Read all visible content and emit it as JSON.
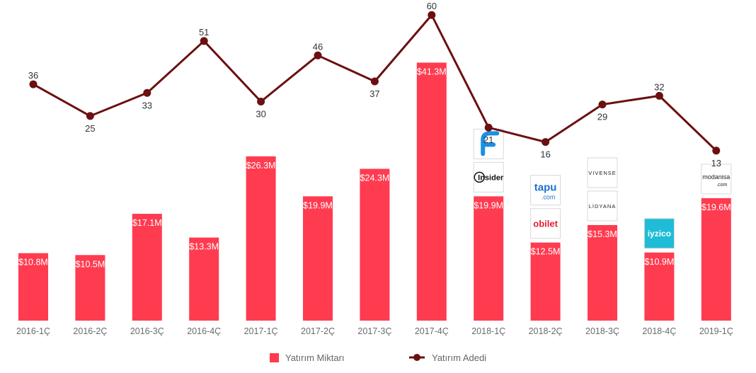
{
  "chart_data": {
    "type": "bar",
    "categories": [
      "2016-1Ç",
      "2016-2Ç",
      "2016-3Ç",
      "2016-4Ç",
      "2017-1Ç",
      "2017-2Ç",
      "2017-3Ç",
      "2017-4Ç",
      "2018-1Ç",
      "2018-2Ç",
      "2018-3Ç",
      "2018-4Ç",
      "2019-1Ç"
    ],
    "series": [
      {
        "name": "Yatırım Miktarı",
        "kind": "bar",
        "color": "#ff3b50",
        "values": [
          10.8,
          10.5,
          17.1,
          13.3,
          26.3,
          19.9,
          24.3,
          41.3,
          19.9,
          12.5,
          15.3,
          10.9,
          19.6
        ],
        "labels": [
          "$10.8M",
          "$10.5M",
          "$17.1M",
          "$13.3M",
          "$26.3M",
          "$19.9M",
          "$24.3M",
          "$41.3M",
          "$19.9M",
          "$12.5M",
          "$15.3M",
          "$10.9M",
          "$19.6M"
        ]
      },
      {
        "name": "Yatırım Adedi",
        "kind": "line",
        "color": "#6b1010",
        "values": [
          36,
          25,
          33,
          51,
          30,
          46,
          37,
          60,
          21,
          16,
          29,
          32,
          13
        ]
      }
    ],
    "legend": {
      "placement": "bottom-center"
    },
    "grid": false,
    "logos": [
      {
        "category_index": 8,
        "icon": "f-logo-icon",
        "text": ""
      },
      {
        "category_index": 8,
        "icon": "insider-logo",
        "text": "Insider"
      },
      {
        "category_index": 9,
        "icon": "tapu-logo",
        "text": "tapu",
        "sub": ".com"
      },
      {
        "category_index": 9,
        "icon": "obilet-logo",
        "text": "obilet"
      },
      {
        "category_index": 10,
        "icon": "vivense-logo",
        "text": "VIVENSE"
      },
      {
        "category_index": 10,
        "icon": "lidyana-logo",
        "text": "LİDYANA"
      },
      {
        "category_index": 11,
        "icon": "iyzico-logo",
        "text": "iyzico"
      },
      {
        "category_index": 12,
        "icon": "modanisa-logo",
        "text": "modanisa",
        "sub": ".com"
      }
    ]
  }
}
